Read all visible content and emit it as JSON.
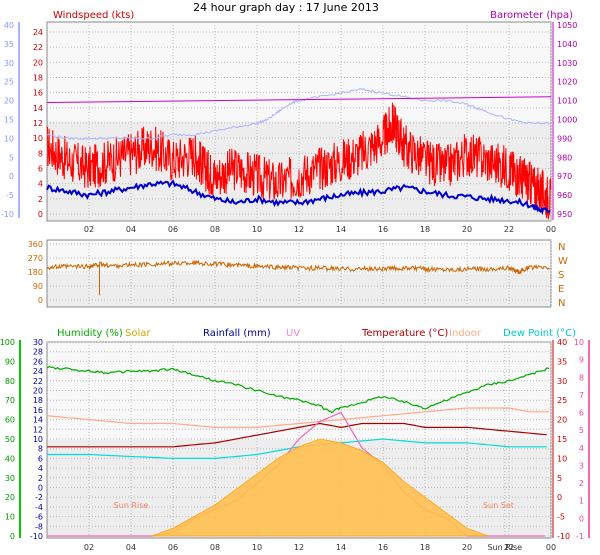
{
  "title": "24 hour graph day : 17 June 2013",
  "chart_data": [
    {
      "id": "wind",
      "type": "line",
      "x_ticks": [
        "02",
        "04",
        "06",
        "08",
        "10",
        "12",
        "14",
        "16",
        "18",
        "20",
        "22",
        "00"
      ],
      "left_label": "Windspeed (kts)",
      "right_label": "Barometer (hpa)",
      "left_red_ticks": [
        "0",
        "2",
        "4",
        "6",
        "8",
        "10",
        "12",
        "14",
        "16",
        "18",
        "20",
        "22",
        "24"
      ],
      "left_blue_ticks": [
        "-10",
        "-5",
        "0",
        "5",
        "10",
        "15",
        "20",
        "25",
        "30",
        "35",
        "40"
      ],
      "right_ticks": [
        "950",
        "960",
        "970",
        "980",
        "990",
        "1000",
        "1010",
        "1020",
        "1030",
        "1040",
        "1050"
      ],
      "windspeed_ylim": [
        0,
        25
      ],
      "barometer_ylim": [
        948,
        1052
      ],
      "series": [
        {
          "color": "#ff0000",
          "x": [
            0,
            1,
            2,
            3,
            4,
            5,
            6,
            7,
            7.5,
            8,
            9,
            10,
            11,
            12,
            13,
            14,
            15,
            16,
            16.5,
            17,
            18,
            19,
            20,
            21,
            22,
            22.5,
            23,
            23.5,
            24
          ],
          "values": [
            9,
            7,
            6,
            7,
            8,
            9,
            7,
            8,
            6,
            5,
            6,
            5,
            4,
            5,
            6,
            7,
            8,
            10,
            12,
            9,
            7,
            6,
            8,
            7,
            6,
            5,
            4,
            3,
            2
          ]
        },
        {
          "color": "#0000cc",
          "x": [
            0,
            1,
            2,
            3,
            4,
            5,
            6,
            7,
            8,
            9,
            10,
            11,
            12,
            13,
            14,
            15,
            16,
            17,
            18,
            19,
            20,
            21,
            22,
            23,
            23.5,
            24
          ],
          "values": [
            3.5,
            3,
            2.5,
            3,
            3.5,
            4,
            4,
            3,
            2,
            1.5,
            2,
            1.5,
            1.5,
            2,
            2.5,
            2.8,
            3,
            3.5,
            3,
            2.5,
            2.3,
            2,
            1.8,
            1.2,
            0.5,
            0.5
          ]
        },
        {
          "color": "#aab4ff",
          "x": [
            0,
            1,
            2,
            3,
            4,
            5,
            6,
            7,
            8,
            9,
            10,
            10.5,
            11,
            11.5,
            12,
            13,
            14,
            15,
            16,
            17,
            18,
            19,
            20,
            20.5,
            21,
            22,
            23,
            24
          ],
          "values": [
            11,
            10,
            10,
            10,
            10,
            10,
            11,
            11,
            12,
            13,
            14,
            15,
            17,
            19,
            20,
            21,
            22,
            23,
            22,
            21,
            20,
            20,
            19,
            18,
            17,
            15,
            14,
            14
          ]
        },
        {
          "color": "#cc00cc",
          "axis": "right",
          "x": [
            0,
            24
          ],
          "values": [
            1009,
            1012
          ]
        }
      ]
    },
    {
      "id": "direction",
      "type": "line",
      "x_ticks": [
        "02",
        "04",
        "06",
        "08",
        "10",
        "12",
        "14",
        "16",
        "18",
        "20",
        "22",
        "00"
      ],
      "left_ticks": [
        "0",
        "90",
        "180",
        "270",
        "360"
      ],
      "right_labels": [
        "N",
        "W",
        "S",
        "E",
        "N"
      ],
      "ylim": [
        0,
        360
      ],
      "series": [
        {
          "color": "#cc6600",
          "x": [
            0,
            1,
            2,
            2.5,
            3,
            4,
            5,
            6,
            7,
            8,
            9,
            10,
            11,
            12,
            13,
            14,
            15,
            16,
            17,
            18,
            19,
            20,
            21,
            22,
            22.5,
            23,
            24
          ],
          "values": [
            210,
            215,
            215,
            230,
            220,
            225,
            230,
            235,
            240,
            230,
            225,
            215,
            210,
            205,
            205,
            200,
            200,
            200,
            205,
            200,
            198,
            198,
            200,
            205,
            180,
            210,
            205
          ]
        }
      ]
    },
    {
      "id": "multi",
      "type": "line",
      "x_ticks": [
        "02",
        "04",
        "06",
        "08",
        "10",
        "12",
        "14",
        "16",
        "18",
        "20",
        "Sun Rise",
        "22",
        "00"
      ],
      "annotations": [
        "Sun Rise",
        "Sun Set"
      ],
      "header_labels": {
        "humidity": "Humidity (%)",
        "solar": "Solar",
        "rainfall": "Rainfall (mm)",
        "uv": "UV",
        "temperature": "Temperature (°C)",
        "indoor": "Indoor",
        "dewpoint": "Dew Point (°C)"
      },
      "humidity_ticks": [
        "0",
        "10",
        "20",
        "30",
        "40",
        "50",
        "60",
        "70",
        "80",
        "90",
        "100"
      ],
      "rainfall_ticks": [
        "-10",
        "-8",
        "-6",
        "-4",
        "-2",
        "0",
        "2",
        "4",
        "6",
        "8",
        "10",
        "12",
        "14",
        "16",
        "18",
        "20",
        "22",
        "24",
        "26",
        "28",
        "30"
      ],
      "temp_ticks": [
        "-10",
        "-5",
        "0",
        "5",
        "10",
        "15",
        "20",
        "25",
        "30",
        "35",
        "40"
      ],
      "uv_ticks": [
        "-1",
        "0",
        "1",
        "2",
        "3",
        "4",
        "5",
        "6",
        "7",
        "8",
        "9",
        "10"
      ],
      "series": [
        {
          "name": "Humidity (%)",
          "color": "#00aa00",
          "x": [
            0,
            1,
            2,
            3,
            4,
            5,
            6,
            7,
            8,
            9,
            10,
            11,
            12,
            13,
            13.5,
            14,
            15,
            16,
            17,
            18,
            19,
            20,
            21,
            22,
            23,
            24
          ],
          "values": [
            87,
            86,
            85,
            84,
            85,
            85,
            86,
            83,
            80,
            78,
            75,
            72,
            70,
            67,
            64,
            66,
            69,
            72,
            69,
            66,
            70,
            74,
            78,
            80,
            83,
            87
          ]
        },
        {
          "name": "Indoor",
          "color": "#ffaa88",
          "x": [
            0,
            2,
            4,
            6,
            8,
            10,
            12,
            14,
            16,
            18,
            20,
            22,
            23,
            24
          ],
          "values": [
            21,
            20,
            19,
            19,
            18,
            18,
            19,
            20,
            21,
            22,
            23,
            23,
            22,
            22
          ]
        },
        {
          "name": "Temperature (°C)",
          "color": "#aa0000",
          "x": [
            0,
            2,
            4,
            6,
            8,
            10,
            12,
            13,
            14,
            15,
            16,
            17,
            18,
            20,
            22,
            24
          ],
          "values": [
            13,
            13,
            13,
            13,
            14,
            16,
            18,
            19,
            18,
            19,
            19,
            19,
            18,
            18,
            17,
            16
          ]
        },
        {
          "name": "Dew Point (°C)",
          "color": "#00dddd",
          "x": [
            0,
            2,
            4,
            6,
            8,
            10,
            12,
            14,
            16,
            18,
            20,
            22,
            24
          ],
          "values": [
            11,
            11,
            10.5,
            10,
            10,
            11,
            13,
            14,
            15,
            14,
            14,
            13,
            13
          ]
        },
        {
          "name": "UV",
          "color": "#ee66bb",
          "axis": "uv",
          "x": [
            0,
            5,
            6,
            7,
            8,
            9,
            10,
            11,
            12,
            13,
            14,
            14.5,
            15,
            16,
            17,
            18,
            19,
            20,
            21,
            24
          ],
          "values": [
            -1,
            -1,
            -0.8,
            0,
            0.5,
            1,
            2,
            3,
            4.5,
            5.5,
            6,
            5,
            4,
            3,
            1.5,
            0.5,
            0,
            -1,
            -1,
            -1
          ]
        },
        {
          "name": "Solar",
          "color": "#ffb030",
          "x": [
            5,
            6,
            7,
            8,
            9,
            10,
            11,
            12,
            13,
            14,
            15,
            16,
            17,
            18,
            19,
            20,
            21
          ],
          "values": [
            -10,
            -8,
            -5,
            -2,
            2,
            6,
            10,
            13,
            15,
            14,
            12,
            9,
            4,
            0,
            -4,
            -8,
            -10
          ]
        }
      ]
    }
  ]
}
